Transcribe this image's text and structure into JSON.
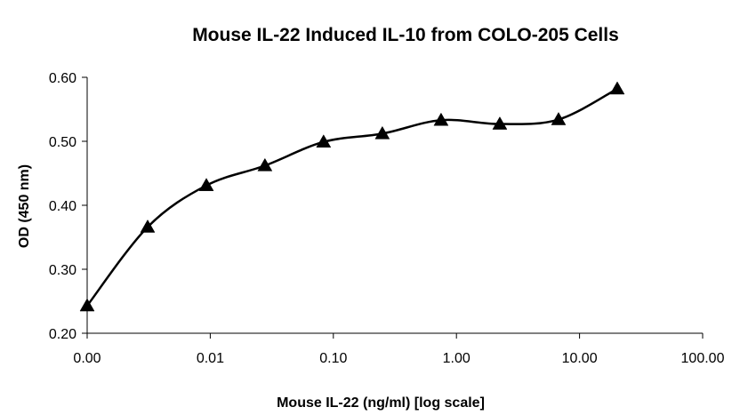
{
  "chart_data": {
    "type": "line",
    "title": "Mouse IL-22 Induced IL-10 from COLO-205 Cells",
    "xlabel": "Mouse IL-22 (ng/ml) [log scale]",
    "ylabel": "OD (450 nm)",
    "x_scale": "log",
    "xlim": [
      0.001,
      100
    ],
    "ylim": [
      0.2,
      0.6
    ],
    "x_tick_values": [
      0.001,
      0.01,
      0.1,
      1,
      10,
      100
    ],
    "x_tick_labels": [
      "0.00",
      "0.01",
      "0.10",
      "1.00",
      "10.00",
      "100.00"
    ],
    "y_tick_values": [
      0.2,
      0.3,
      0.4,
      0.5,
      0.6
    ],
    "y_tick_labels": [
      "0.20",
      "0.30",
      "0.40",
      "0.50",
      "0.60"
    ],
    "grid": false,
    "legend": "none",
    "line_color": "#000000",
    "marker": "triangle",
    "series": [
      {
        "x": [
          0.001,
          0.0031,
          0.0093,
          0.0278,
          0.0833,
          0.25,
          0.75,
          2.25,
          6.75,
          20.25
        ],
        "y": [
          0.243,
          0.366,
          0.431,
          0.462,
          0.499,
          0.512,
          0.533,
          0.527,
          0.534,
          0.582
        ]
      }
    ]
  }
}
